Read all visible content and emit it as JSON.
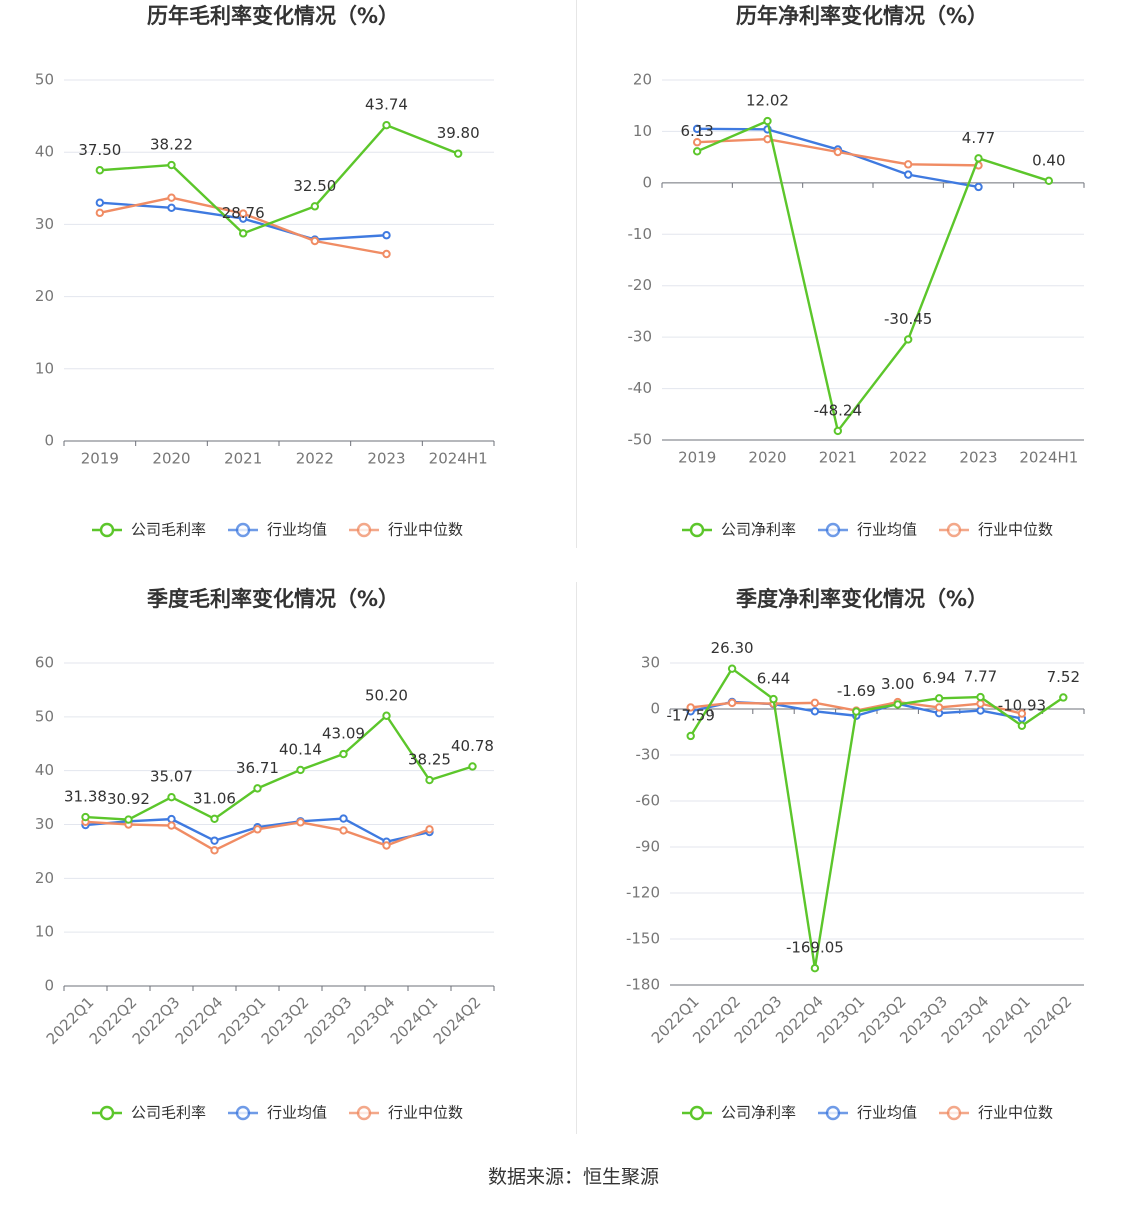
{
  "colors": {
    "company": "#5cc62b",
    "avg": "#3f7ae0",
    "median": "#f08c64",
    "grid": "#e3e6ee",
    "axis": "#6e7079",
    "tick": "#777777",
    "title": "#333333",
    "label": "#333333"
  },
  "source_label": "数据来源：恒生聚源",
  "chart_data": [
    {
      "type": "line",
      "title": "历年毛利率变化情况（%）",
      "categories": [
        "2019",
        "2020",
        "2021",
        "2022",
        "2023",
        "2024H1"
      ],
      "ylim": [
        0,
        50
      ],
      "yticks": [
        0,
        10,
        20,
        30,
        40,
        50
      ],
      "rotate_x": false,
      "legend_position": "bottom",
      "series": [
        {
          "name": "公司毛利率",
          "role": "company",
          "values": [
            37.5,
            38.22,
            28.76,
            32.5,
            43.74,
            39.8
          ],
          "labels": [
            "37.50",
            "38.22",
            "28.76",
            "32.50",
            "43.74",
            "39.80"
          ]
        },
        {
          "name": "行业均值",
          "role": "avg",
          "values": [
            33.0,
            32.3,
            30.8,
            27.9,
            28.5,
            null
          ]
        },
        {
          "name": "行业中位数",
          "role": "median",
          "values": [
            31.6,
            33.7,
            31.5,
            27.7,
            25.9,
            null
          ]
        }
      ]
    },
    {
      "type": "line",
      "title": "历年净利率变化情况（%）",
      "categories": [
        "2019",
        "2020",
        "2021",
        "2022",
        "2023",
        "2024H1"
      ],
      "ylim": [
        -50,
        20
      ],
      "yticks": [
        -50,
        -40,
        -30,
        -20,
        -10,
        0,
        10,
        20
      ],
      "rotate_x": false,
      "legend_position": "bottom",
      "series": [
        {
          "name": "公司净利率",
          "role": "company",
          "values": [
            6.13,
            12.02,
            -48.24,
            -30.45,
            4.77,
            0.4
          ],
          "labels": [
            "6.13",
            "12.02",
            "-48.24",
            "-30.45",
            "4.77",
            "0.40"
          ]
        },
        {
          "name": "行业均值",
          "role": "avg",
          "values": [
            10.5,
            10.4,
            6.5,
            1.6,
            -0.8,
            null
          ]
        },
        {
          "name": "行业中位数",
          "role": "median",
          "values": [
            7.9,
            8.5,
            6.0,
            3.6,
            3.4,
            null
          ]
        }
      ]
    },
    {
      "type": "line",
      "title": "季度毛利率变化情况（%）",
      "categories": [
        "2022Q1",
        "2022Q2",
        "2022Q3",
        "2022Q4",
        "2023Q1",
        "2023Q2",
        "2023Q3",
        "2023Q4",
        "2024Q1",
        "2024Q2"
      ],
      "ylim": [
        0,
        60
      ],
      "yticks": [
        0,
        10,
        20,
        30,
        40,
        50,
        60
      ],
      "rotate_x": true,
      "legend_position": "bottom",
      "series": [
        {
          "name": "公司毛利率",
          "role": "company",
          "values": [
            31.38,
            30.92,
            35.07,
            31.06,
            36.71,
            40.14,
            43.09,
            50.2,
            38.25,
            40.78
          ],
          "labels": [
            "31.38",
            "30.92",
            "35.07",
            "31.06",
            "36.71",
            "40.14",
            "43.09",
            "50.20",
            "38.25",
            "40.78"
          ]
        },
        {
          "name": "行业均值",
          "role": "avg",
          "values": [
            29.9,
            30.6,
            31.0,
            27.0,
            29.5,
            30.6,
            31.1,
            26.8,
            28.6,
            null
          ]
        },
        {
          "name": "行业中位数",
          "role": "median",
          "values": [
            30.5,
            30.0,
            29.8,
            25.2,
            29.1,
            30.4,
            28.9,
            26.1,
            29.1,
            null
          ]
        }
      ]
    },
    {
      "type": "line",
      "title": "季度净利率变化情况（%）",
      "categories": [
        "2022Q1",
        "2022Q2",
        "2022Q3",
        "2022Q4",
        "2023Q1",
        "2023Q2",
        "2023Q3",
        "2023Q4",
        "2024Q1",
        "2024Q2"
      ],
      "ylim": [
        -180,
        30
      ],
      "yticks": [
        -180,
        -150,
        -120,
        -90,
        -60,
        -30,
        0,
        30
      ],
      "rotate_x": true,
      "legend_position": "bottom",
      "series": [
        {
          "name": "公司净利率",
          "role": "company",
          "values": [
            -17.59,
            26.3,
            6.44,
            -169.05,
            -1.69,
            3.0,
            6.94,
            7.77,
            -10.93,
            7.52
          ],
          "labels": [
            "-17.59",
            "26.30",
            "6.44",
            "-169.05",
            "-1.69",
            "3.00",
            "6.94",
            "7.77",
            "-10.93",
            "7.52"
          ]
        },
        {
          "name": "行业均值",
          "role": "avg",
          "values": [
            -1.5,
            4.6,
            3.2,
            -1.5,
            -4.4,
            3.4,
            -2.7,
            -1.0,
            -6.2,
            null
          ]
        },
        {
          "name": "行业中位数",
          "role": "median",
          "values": [
            1.0,
            4.0,
            3.5,
            4.0,
            -1.0,
            4.5,
            1.0,
            3.5,
            -3.0,
            null
          ]
        }
      ]
    }
  ]
}
